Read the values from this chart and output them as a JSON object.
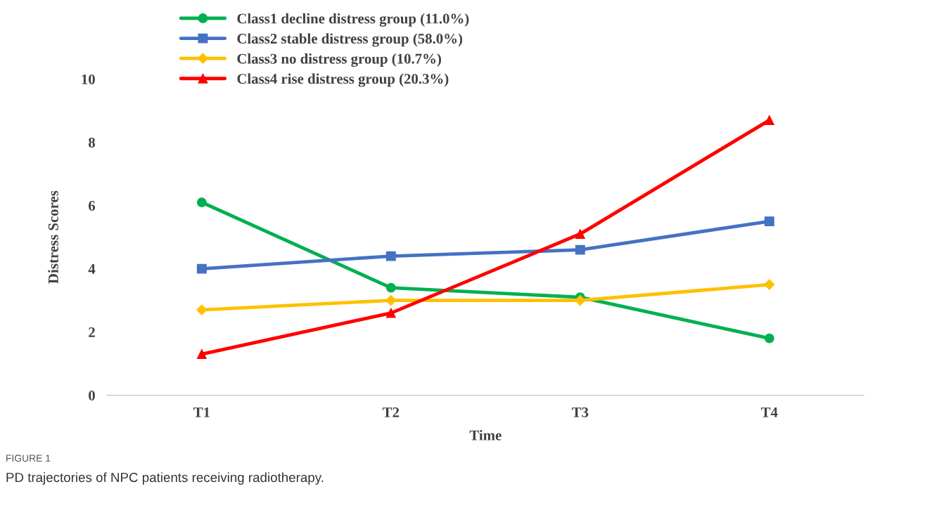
{
  "chart_data": {
    "type": "line",
    "xlabel": "Time",
    "ylabel": "Distress Scores",
    "categories": [
      "T1",
      "T2",
      "T3",
      "T4"
    ],
    "series": [
      {
        "name": "Class1 decline distress group (11.0%)",
        "color": "#00b050",
        "marker": "circle",
        "values": [
          6.1,
          3.4,
          3.1,
          1.8
        ]
      },
      {
        "name": "Class2 stable distress group (58.0%)",
        "color": "#4472c4",
        "marker": "square",
        "values": [
          4.0,
          4.4,
          4.6,
          5.5
        ]
      },
      {
        "name": "Class3 no distress group (10.7%)",
        "color": "#ffc000",
        "marker": "diamond",
        "values": [
          2.7,
          3.0,
          3.0,
          3.5
        ]
      },
      {
        "name": "Class4 rise distress group (20.3%)",
        "color": "#ff0000",
        "marker": "triangle",
        "values": [
          1.3,
          2.6,
          5.1,
          8.7
        ]
      }
    ],
    "ylim": [
      0,
      10
    ],
    "yticks": [
      0,
      2,
      4,
      6,
      8,
      10
    ],
    "grid": false,
    "legend": "top left",
    "line_style": "solid",
    "annotations": [
      "FIGURE 1",
      "PD trajectories of NPC patients receiving radiotherapy."
    ]
  }
}
